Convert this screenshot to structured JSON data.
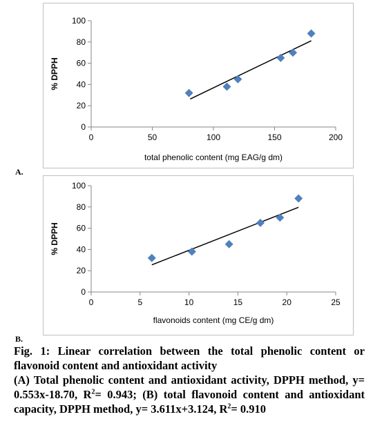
{
  "chart_data": [
    {
      "type": "scatter",
      "panel": "A.",
      "xlabel": "total phenolic content (mg EAG/g dm)",
      "ylabel": "% DPPH",
      "xlim": [
        0,
        200
      ],
      "ylim": [
        0,
        100
      ],
      "xticks": [
        0,
        50,
        100,
        150,
        200
      ],
      "yticks": [
        0,
        20,
        40,
        60,
        80,
        100
      ],
      "points": [
        [
          80,
          32
        ],
        [
          111,
          38
        ],
        [
          120,
          45
        ],
        [
          155,
          65
        ],
        [
          165,
          70
        ],
        [
          180,
          88
        ]
      ],
      "trendline": {
        "x1": 81,
        "x2": 180
      },
      "marker_color": "#4f81bd",
      "grid": false,
      "legend": "none"
    },
    {
      "type": "scatter",
      "panel": "B.",
      "xlabel": "flavonoids content (mg CE/g dm)",
      "ylabel": "% DPPH",
      "xlim": [
        0,
        25
      ],
      "ylim": [
        0,
        100
      ],
      "xticks": [
        0,
        5,
        10,
        15,
        20,
        25
      ],
      "yticks": [
        0,
        20,
        40,
        60,
        80,
        100
      ],
      "points": [
        [
          6.2,
          32
        ],
        [
          10.3,
          38
        ],
        [
          14.1,
          45
        ],
        [
          17.3,
          65
        ],
        [
          19.3,
          70
        ],
        [
          21.2,
          88
        ]
      ],
      "trendline": {
        "x1": 6.2,
        "x2": 21.2
      },
      "marker_color": "#4f81bd",
      "grid": false,
      "legend": "none"
    }
  ],
  "caption": {
    "title": "Fig. 1: Linear correlation between the total phenolic content or flavonoid content and antioxidant activity",
    "body_a": "(A) Total phenolic content and antioxidant activity, DPPH method, y= 0.553x-18.70, R",
    "sup1": "2",
    "body_b": "= 0.943; (B) total flavonoid content and antioxidant capacity, DPPH method, y= 3.611x+3.124, R",
    "sup2": "2",
    "body_c": "= 0.910"
  }
}
